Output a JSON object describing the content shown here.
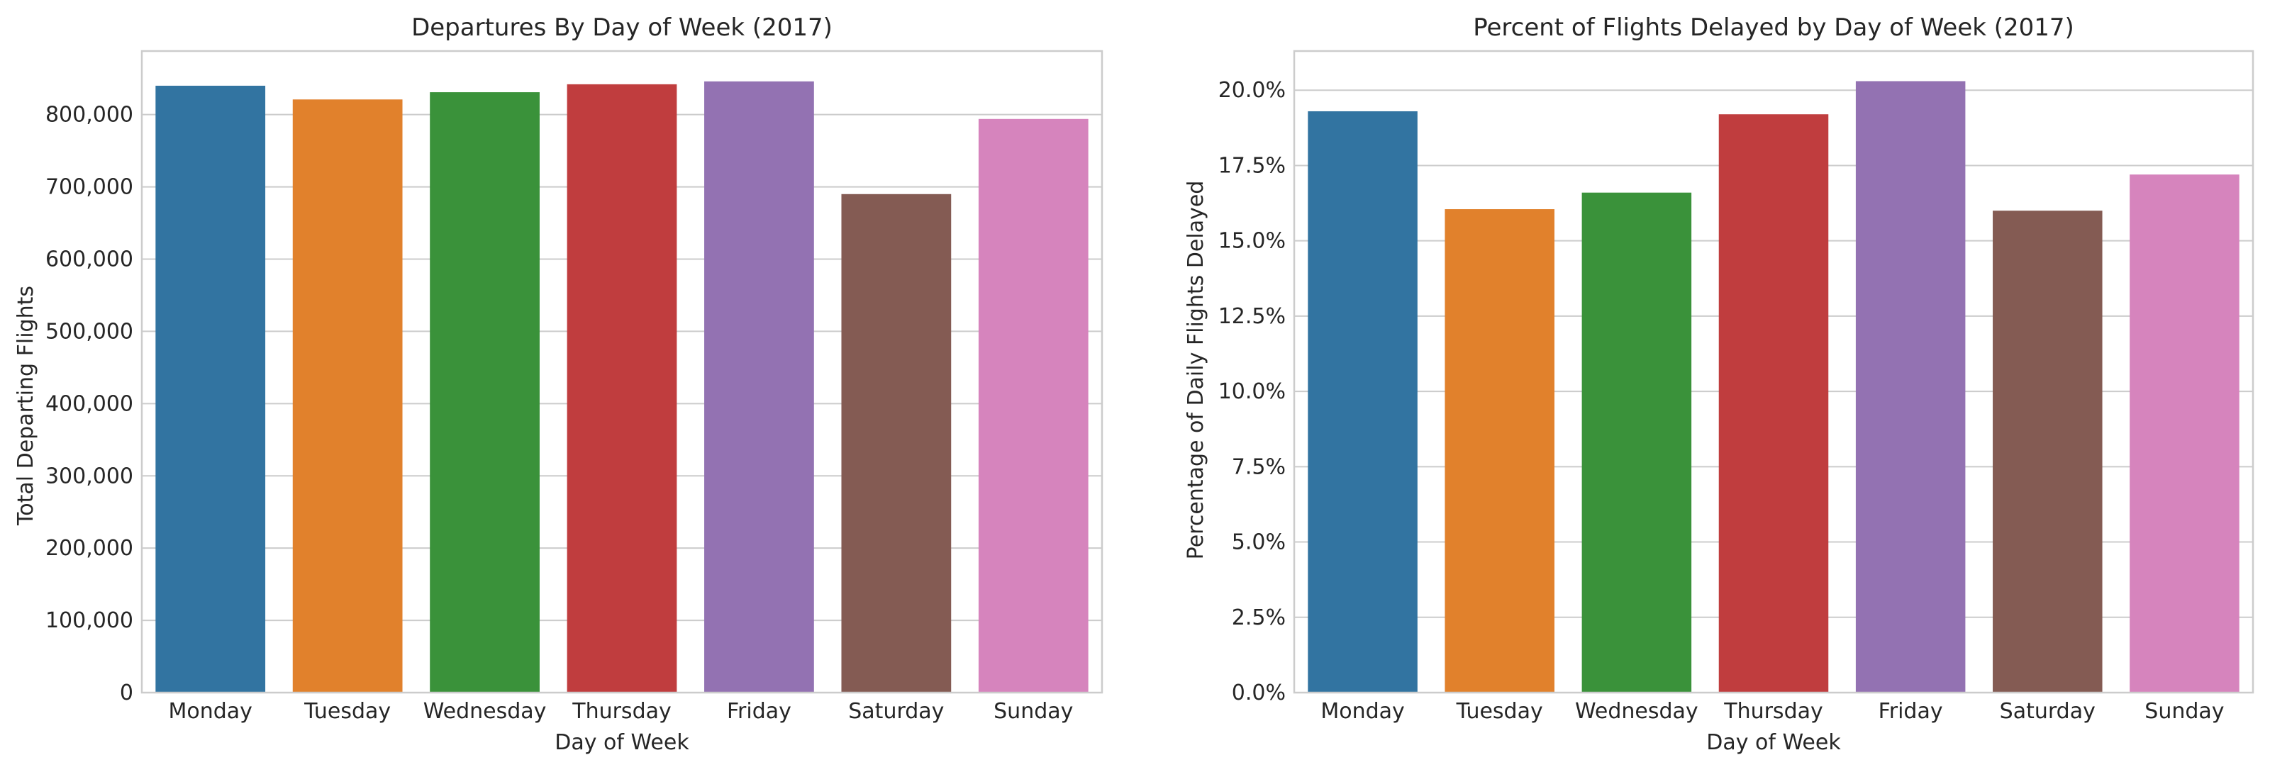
{
  "chart_data": [
    {
      "type": "bar",
      "title": "Departures By Day of Week (2017)",
      "xlabel": "Day of Week",
      "ylabel": "Total Departing Flights",
      "categories": [
        "Monday",
        "Tuesday",
        "Wednesday",
        "Thursday",
        "Friday",
        "Saturday",
        "Sunday"
      ],
      "values": [
        840000,
        821000,
        831000,
        842000,
        846000,
        690000,
        794000
      ],
      "ylim": [
        0,
        888000
      ],
      "yticks": [
        0,
        100000,
        200000,
        300000,
        400000,
        500000,
        600000,
        700000,
        800000
      ],
      "ytick_labels": [
        "0",
        "100,000",
        "200,000",
        "300,000",
        "400,000",
        "500,000",
        "600,000",
        "700,000",
        "800,000"
      ],
      "colors": [
        "#3274a1",
        "#e1812c",
        "#3a923a",
        "#c03d3e",
        "#9372b2",
        "#845b53",
        "#d684bd"
      ],
      "grid": "horizontal"
    },
    {
      "type": "bar",
      "title": "Percent of Flights Delayed by Day of Week (2017)",
      "xlabel": "Day of Week",
      "ylabel": "Percentage of Daily Flights Delayed",
      "categories": [
        "Monday",
        "Tuesday",
        "Wednesday",
        "Thursday",
        "Friday",
        "Saturday",
        "Sunday"
      ],
      "values": [
        19.3,
        16.05,
        16.6,
        19.2,
        20.3,
        16.0,
        17.2
      ],
      "ylim": [
        0,
        21.3
      ],
      "yticks": [
        0,
        2.5,
        5,
        7.5,
        10,
        12.5,
        15,
        17.5,
        20
      ],
      "ytick_labels": [
        "0.0%",
        "2.5%",
        "5.0%",
        "7.5%",
        "10.0%",
        "12.5%",
        "15.0%",
        "17.5%",
        "20.0%"
      ],
      "colors": [
        "#3274a1",
        "#e1812c",
        "#3a923a",
        "#c03d3e",
        "#9372b2",
        "#845b53",
        "#d684bd"
      ],
      "grid": "horizontal"
    }
  ]
}
